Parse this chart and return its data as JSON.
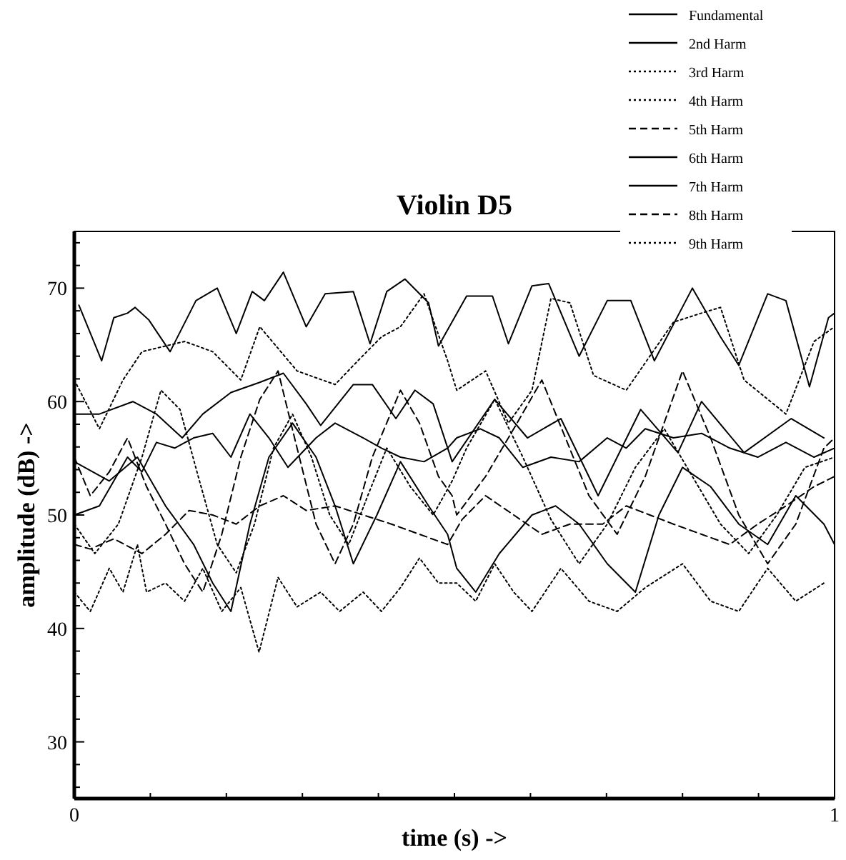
{
  "chart_data": {
    "type": "line",
    "title": "Violin D5",
    "xlabel": "time (s) ->",
    "ylabel": "amplitude (dB)  ->",
    "xlim": [
      0,
      1
    ],
    "ylim": [
      25,
      75
    ],
    "xticks": [
      0,
      {
        "value": 0.1,
        "label": null
      },
      {
        "value": 0.2,
        "label": null
      },
      {
        "value": 0.3,
        "label": null
      },
      {
        "value": 0.4,
        "label": null
      },
      {
        "value": 0.5,
        "label": null
      },
      {
        "value": 0.6,
        "label": null
      },
      {
        "value": 0.7,
        "label": null
      },
      {
        "value": 0.8,
        "label": null
      },
      {
        "value": 0.9,
        "label": null
      },
      1
    ],
    "yticks": [
      {
        "value": 26,
        "label": null
      },
      {
        "value": 28,
        "label": null
      },
      30,
      {
        "value": 32,
        "label": null
      },
      {
        "value": 34,
        "label": null
      },
      {
        "value": 36,
        "label": null
      },
      {
        "value": 38,
        "label": null
      },
      40,
      {
        "value": 42,
        "label": null
      },
      {
        "value": 44,
        "label": null
      },
      {
        "value": 46,
        "label": null
      },
      {
        "value": 48,
        "label": null
      },
      50,
      {
        "value": 52,
        "label": null
      },
      {
        "value": 54,
        "label": null
      },
      {
        "value": 56,
        "label": null
      },
      {
        "value": 58,
        "label": null
      },
      60,
      {
        "value": 62,
        "label": null
      },
      {
        "value": 64,
        "label": null
      },
      {
        "value": 66,
        "label": null
      },
      {
        "value": 68,
        "label": null
      },
      70,
      {
        "value": 72,
        "label": null
      },
      {
        "value": 74,
        "label": null
      }
    ],
    "legend": "top right",
    "series": [
      {
        "name": "Fundamental",
        "color": "#000000",
        "line_style": "solid",
        "x": [
          0.006,
          0.036,
          0.052,
          0.07,
          0.08,
          0.098,
          0.126,
          0.16,
          0.188,
          0.213,
          0.234,
          0.25,
          0.275,
          0.305,
          0.33,
          0.367,
          0.389,
          0.411,
          0.435,
          0.466,
          0.479,
          0.516,
          0.55,
          0.571,
          0.602,
          0.624,
          0.664,
          0.701,
          0.732,
          0.763,
          0.813,
          0.85,
          0.874,
          0.912,
          0.936,
          0.967,
          0.992,
          1.0
        ],
        "values": [
          68.5,
          63.6,
          67.4,
          67.8,
          68.3,
          67.2,
          64.4,
          68.9,
          70,
          66,
          69.7,
          68.9,
          71.4,
          66.6,
          69.5,
          69.7,
          65.1,
          69.7,
          70.8,
          68.7,
          64.9,
          69.3,
          69.3,
          65.1,
          70.2,
          70.4,
          64,
          68.9,
          68.9,
          63.6,
          70,
          65.7,
          63.2,
          69.5,
          68.9,
          61.3,
          67.4,
          67.8
        ]
      },
      {
        "name": "2nd Harm",
        "color": "#000000",
        "line_style": "solid",
        "x": [
          0,
          0.033,
          0.07,
          0.089,
          0.108,
          0.132,
          0.157,
          0.182,
          0.206,
          0.231,
          0.256,
          0.281,
          0.318,
          0.343,
          0.38,
          0.404,
          0.429,
          0.46,
          0.491,
          0.503,
          0.534,
          0.559,
          0.59,
          0.627,
          0.664,
          0.701,
          0.726,
          0.751,
          0.788,
          0.825,
          0.862,
          0.899,
          0.936,
          0.973,
          1.0
        ],
        "values": [
          50,
          50.8,
          55.1,
          53.8,
          56.4,
          55.9,
          56.8,
          57.2,
          55.1,
          58.9,
          56.8,
          54.2,
          56.8,
          58.1,
          56.8,
          55.9,
          55.1,
          54.7,
          55.9,
          56.8,
          57.6,
          56.8,
          54.2,
          55.1,
          54.7,
          56.8,
          55.9,
          57.6,
          56.8,
          57.2,
          55.9,
          55.1,
          56.4,
          55.1,
          55.9
        ]
      },
      {
        "name": "3rd Harm",
        "color": "#000000",
        "line_style": "dotted",
        "x": [
          0,
          0.033,
          0.064,
          0.089,
          0.145,
          0.182,
          0.219,
          0.244,
          0.293,
          0.343,
          0.373,
          0.404,
          0.429,
          0.46,
          0.491,
          0.503,
          0.541,
          0.571,
          0.602,
          0.627,
          0.652,
          0.683,
          0.726,
          0.757,
          0.788,
          0.825,
          0.85,
          0.881,
          0.936,
          0.973,
          1.0
        ],
        "values": [
          61.9,
          57.6,
          61.9,
          64.4,
          65.3,
          64.4,
          61.9,
          66.6,
          62.7,
          61.5,
          63.6,
          65.7,
          66.6,
          69.5,
          63.6,
          61,
          62.7,
          58.1,
          61,
          69.1,
          68.7,
          62.3,
          61,
          64,
          67,
          67.8,
          68.3,
          61.9,
          58.9,
          65.3,
          66.6
        ]
      },
      {
        "name": "4th Harm",
        "color": "#000000",
        "line_style": "dotted",
        "x": [
          0,
          0.027,
          0.058,
          0.089,
          0.114,
          0.139,
          0.163,
          0.188,
          0.213,
          0.237,
          0.262,
          0.287,
          0.312,
          0.336,
          0.361,
          0.386,
          0.411,
          0.442,
          0.472,
          0.497,
          0.516,
          0.553,
          0.59,
          0.627,
          0.664,
          0.701,
          0.738,
          0.776,
          0.813,
          0.85,
          0.887,
          0.924,
          0.961,
          1.0
        ],
        "values": [
          49.2,
          46.6,
          49.2,
          55.1,
          61,
          59.3,
          53.4,
          47.4,
          44.9,
          49.2,
          55.9,
          58.9,
          55.1,
          50,
          47.4,
          51.7,
          55.9,
          52.5,
          50,
          53,
          55.9,
          60.2,
          55.1,
          49.6,
          45.7,
          49.2,
          54.2,
          57.6,
          53.4,
          49.2,
          46.6,
          50,
          54.2,
          55.1
        ]
      },
      {
        "name": "5th Harm",
        "color": "#000000",
        "line_style": "dashed",
        "x": [
          0,
          0.021,
          0.052,
          0.089,
          0.12,
          0.151,
          0.182,
          0.213,
          0.244,
          0.275,
          0.305,
          0.343,
          0.38,
          0.417,
          0.454,
          0.491,
          0.51,
          0.541,
          0.578,
          0.615,
          0.652,
          0.695,
          0.726,
          0.757,
          0.788,
          0.825,
          0.862,
          0.899,
          0.936,
          0.973,
          1.0
        ],
        "values": [
          47.4,
          47,
          47.9,
          46.6,
          48.3,
          50.4,
          50,
          49.2,
          50.8,
          51.7,
          50.4,
          50.8,
          50,
          49.2,
          48.3,
          47.4,
          49.6,
          51.7,
          50,
          48.3,
          49.2,
          49.2,
          50.8,
          50,
          49.2,
          48.3,
          47.4,
          49.2,
          50.8,
          52.5,
          53.4
        ]
      },
      {
        "name": "6th Harm",
        "color": "#000000",
        "line_style": "solid",
        "x": [
          0,
          0.033,
          0.077,
          0.108,
          0.142,
          0.169,
          0.206,
          0.244,
          0.275,
          0.305,
          0.324,
          0.367,
          0.392,
          0.423,
          0.448,
          0.472,
          0.497,
          0.553,
          0.596,
          0.64,
          0.689,
          0.745,
          0.794,
          0.825,
          0.881,
          0.943,
          0.986
        ],
        "values": [
          58.9,
          58.9,
          60,
          58.9,
          56.8,
          58.9,
          60.8,
          61.7,
          62.5,
          59.8,
          57.9,
          61.5,
          61.5,
          58.5,
          61,
          59.8,
          54.7,
          60.2,
          56.8,
          58.5,
          51.7,
          59.3,
          55.5,
          60,
          55.5,
          58.5,
          56.8
        ]
      },
      {
        "name": "7th Harm",
        "color": "#000000",
        "line_style": "solid",
        "x": [
          0,
          0.046,
          0.083,
          0.12,
          0.157,
          0.182,
          0.206,
          0.231,
          0.256,
          0.287,
          0.318,
          0.343,
          0.367,
          0.398,
          0.429,
          0.466,
          0.491,
          0.503,
          0.528,
          0.559,
          0.602,
          0.633,
          0.664,
          0.701,
          0.738,
          0.769,
          0.8,
          0.837,
          0.874,
          0.912,
          0.949,
          0.986,
          1.0
        ],
        "values": [
          54.7,
          53,
          55.1,
          50.8,
          47.4,
          44,
          41.5,
          49.2,
          55.1,
          58.1,
          55.1,
          50.8,
          45.7,
          50,
          54.7,
          50.8,
          48.3,
          45.3,
          43.2,
          46.6,
          50,
          50.8,
          49.2,
          45.7,
          43.2,
          50,
          54.2,
          52.5,
          49.2,
          47.4,
          51.7,
          49.2,
          47.4
        ]
      },
      {
        "name": "8th Harm",
        "color": "#000000",
        "line_style": "dashed",
        "x": [
          0,
          0.021,
          0.046,
          0.07,
          0.095,
          0.12,
          0.145,
          0.169,
          0.194,
          0.219,
          0.244,
          0.268,
          0.293,
          0.318,
          0.343,
          0.367,
          0.392,
          0.429,
          0.454,
          0.479,
          0.497,
          0.503,
          0.541,
          0.578,
          0.615,
          0.646,
          0.677,
          0.714,
          0.751,
          0.8,
          0.837,
          0.874,
          0.912,
          0.949,
          0.986,
          1.0
        ],
        "values": [
          55.1,
          51.7,
          53.8,
          56.8,
          52.5,
          49.2,
          45.7,
          43.2,
          48.3,
          55.1,
          60.2,
          62.7,
          55.9,
          49.2,
          45.7,
          49.2,
          55.1,
          61,
          58.1,
          53.4,
          51.7,
          50,
          53.4,
          57.6,
          61.9,
          56.8,
          51.7,
          48.3,
          53.4,
          62.7,
          56.8,
          50,
          45.7,
          49.2,
          55.9,
          56.8
        ]
      },
      {
        "name": "9th Harm",
        "color": "#000000",
        "line_style": "dotted",
        "x": [
          0,
          0.021,
          0.046,
          0.064,
          0.083,
          0.095,
          0.12,
          0.145,
          0.169,
          0.194,
          0.219,
          0.243,
          0.268,
          0.293,
          0.324,
          0.349,
          0.38,
          0.404,
          0.429,
          0.454,
          0.479,
          0.503,
          0.528,
          0.553,
          0.578,
          0.602,
          0.64,
          0.677,
          0.714,
          0.751,
          0.8,
          0.837,
          0.874,
          0.912,
          0.949,
          0.986
        ],
        "values": [
          43.2,
          41.5,
          45.3,
          43.2,
          47.4,
          43.2,
          44,
          42.4,
          45.3,
          41.5,
          43.6,
          37.9,
          44.5,
          41.9,
          43.2,
          41.5,
          43.2,
          41.5,
          43.6,
          46.2,
          44,
          44,
          42.4,
          45.7,
          43.2,
          41.5,
          45.3,
          42.4,
          41.5,
          43.6,
          45.7,
          42.4,
          41.5,
          45.3,
          42.4,
          44
        ]
      }
    ]
  }
}
